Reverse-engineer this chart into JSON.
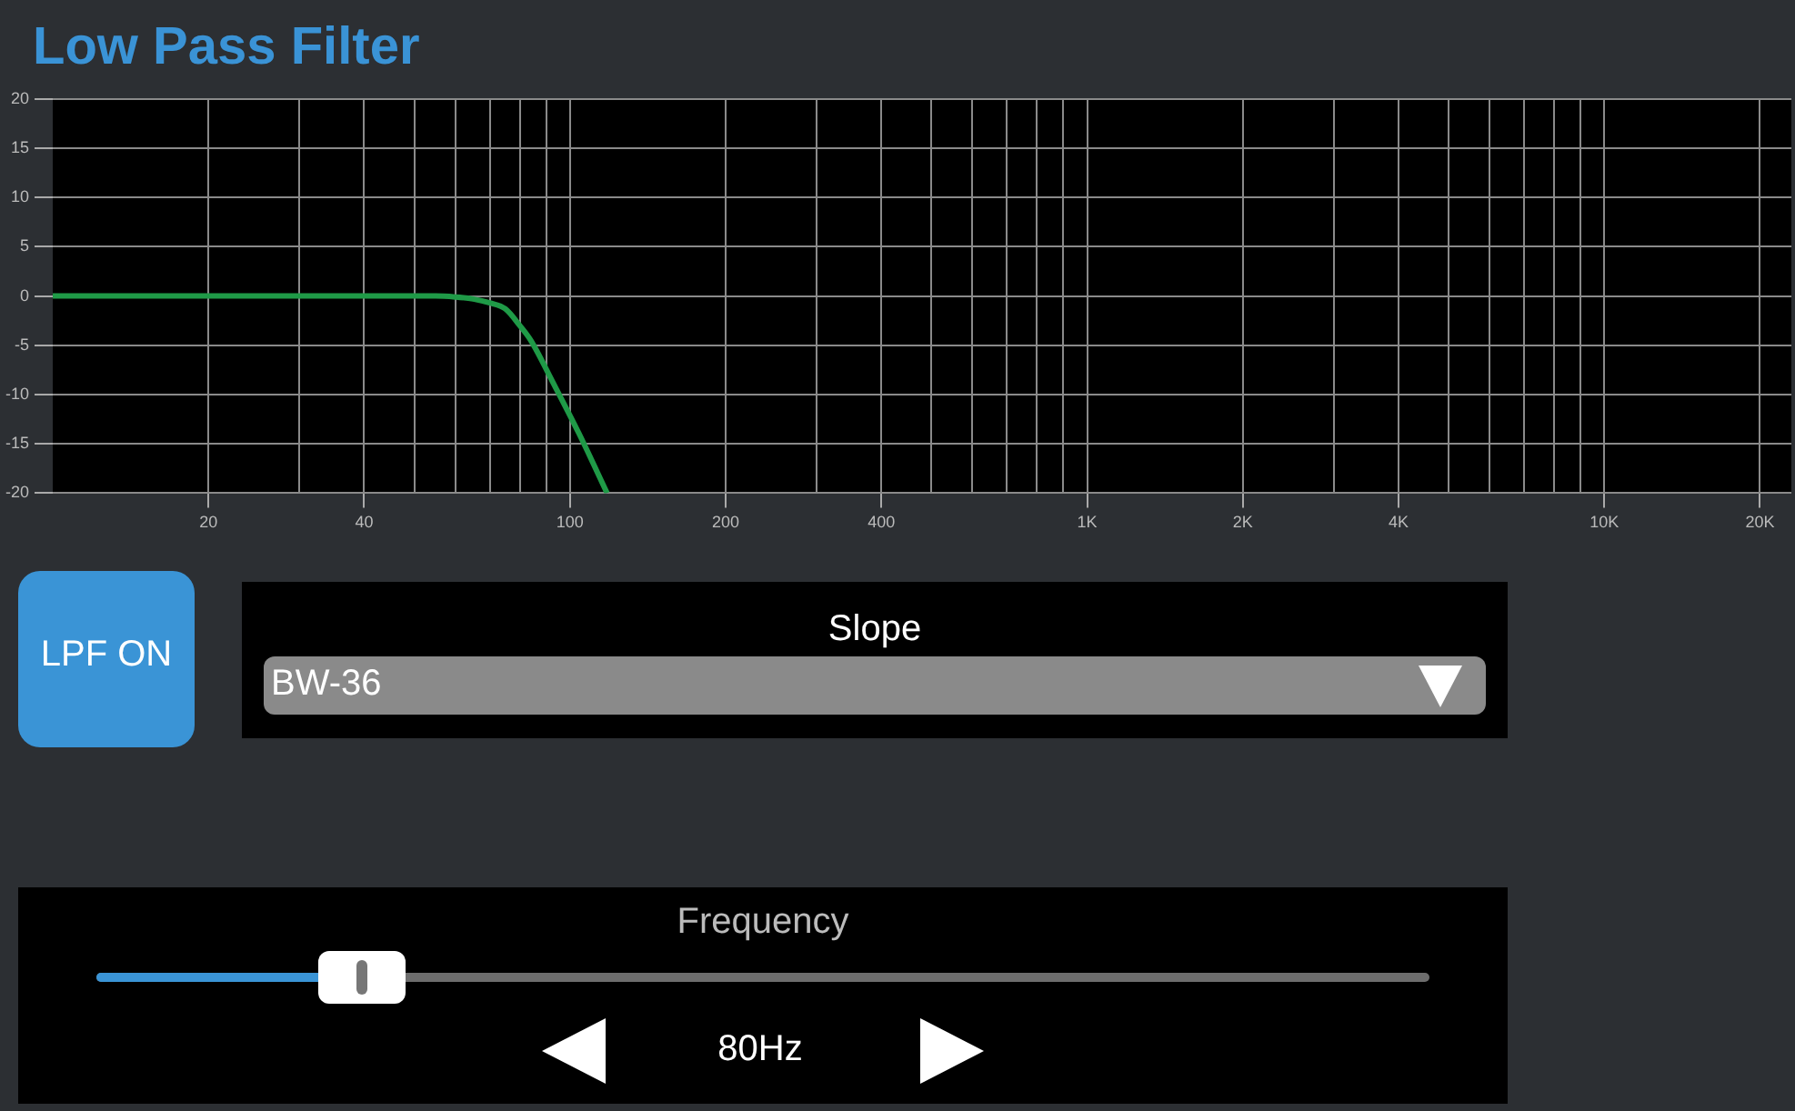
{
  "chart_data": {
    "type": "line",
    "title": "Low Pass Filter",
    "x": [
      10,
      20,
      40,
      55,
      60,
      65,
      70,
      75,
      80,
      84,
      93,
      104,
      118
    ],
    "series": [
      {
        "color": "#1f9a47",
        "values": [
          0,
          0,
          0,
          0,
          -0.1,
          -0.3,
          -0.7,
          -1.3,
          -3,
          -4.5,
          -8.9,
          -13.9,
          -20
        ]
      }
    ],
    "xlim": [
      10,
      23000
    ],
    "ylim": [
      -20,
      20
    ],
    "xticks": [
      20,
      {
        "value": 30,
        "label": null
      },
      40,
      {
        "value": 50,
        "label": null
      },
      {
        "value": 60,
        "label": null
      },
      {
        "value": 70,
        "label": null
      },
      {
        "value": 80,
        "label": null
      },
      {
        "value": 90,
        "label": null
      },
      100,
      200,
      {
        "value": 300,
        "label": null
      },
      400,
      {
        "value": 500,
        "label": null
      },
      {
        "value": 600,
        "label": null
      },
      {
        "value": 700,
        "label": null
      },
      {
        "value": 800,
        "label": null
      },
      {
        "value": 900,
        "label": null
      },
      {
        "value": 1000,
        "label": "1K"
      },
      {
        "value": 2000,
        "label": "2K"
      },
      {
        "value": 3000,
        "label": null
      },
      {
        "value": 4000,
        "label": "4K"
      },
      {
        "value": 5000,
        "label": null
      },
      {
        "value": 6000,
        "label": null
      },
      {
        "value": 7000,
        "label": null
      },
      {
        "value": 8000,
        "label": null
      },
      {
        "value": 9000,
        "label": null
      },
      {
        "value": 10000,
        "label": "10K"
      },
      {
        "value": 20000,
        "label": "20K"
      }
    ],
    "yticks": [
      -20,
      -15,
      -10,
      -5,
      0,
      5,
      10,
      15,
      20
    ],
    "log": "x",
    "grid": true,
    "annotations": [
      "LPF ON",
      "Slope",
      "BW-36",
      "Frequency",
      "80Hz"
    ]
  }
}
